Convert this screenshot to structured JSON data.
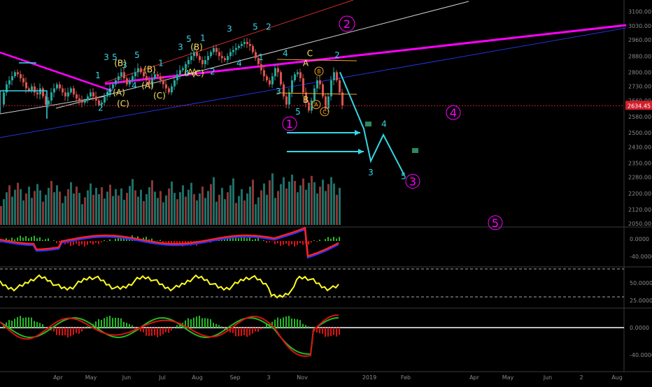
{
  "colors": {
    "background": "#000000",
    "candle_up": "#26a69a",
    "candle_down": "#d9534f",
    "volume_up": "#1f6f66",
    "volume_down": "#8c3636",
    "magenta": "#ff00ff",
    "cyan": "#35d7e6",
    "yellow_label": "#f6e05e",
    "orange": "#f5a623",
    "white_line": "#cfcfcf",
    "red_line": "#d22a2a",
    "blue_line": "#2233dd",
    "axis_text": "#8a8a8a",
    "price_badge": "#d21e2b",
    "macd_blue": "#2233ff",
    "macd_red": "#ff2222",
    "osc_yellow": "#ffff22",
    "osc_green": "#22bb22",
    "osc_red": "#dd1111"
  },
  "chart_data": {
    "type": "line",
    "title": "",
    "x_axis_labels": [
      "Apr",
      "May",
      "Jun",
      "Jul",
      "Aug",
      "Sep",
      "3",
      "Nov",
      "2019",
      "Feb",
      "Apr",
      "May",
      "Jun",
      "2",
      "Aug"
    ],
    "price_axis": {
      "ticks": [
        2050,
        2120,
        2200,
        2280,
        2350,
        2430,
        2500,
        2580,
        2660,
        2730,
        2800,
        2880,
        2960,
        3030,
        3100
      ],
      "tick_labels": [
        "2050.00",
        "2120.00",
        "2200.00",
        "2280.00",
        "2350.00",
        "2430.00",
        "2500.00",
        "2580.00",
        "2660.00",
        "2730.00",
        "2800.00",
        "2880.00",
        "2960.00",
        "3030.00",
        "3100.00"
      ],
      "range": [
        2030,
        3130
      ],
      "current_price": 2634.45,
      "current_price_label": "2634.45"
    },
    "price_series": {
      "name": "",
      "x": [
        0,
        4,
        8,
        12,
        16,
        20,
        24,
        28,
        32,
        36,
        40,
        44,
        48,
        52,
        56,
        60,
        64,
        68,
        72,
        76,
        80,
        84,
        88,
        92,
        96,
        100,
        104,
        108,
        112,
        116,
        120,
        124,
        128,
        132,
        136,
        140,
        144,
        148,
        152,
        156,
        160,
        164,
        168,
        172,
        176,
        180,
        184,
        188,
        192,
        196,
        200,
        204,
        208,
        212,
        216,
        220,
        224,
        228,
        232,
        236,
        240,
        244,
        248,
        252,
        256,
        260,
        264,
        268,
        272,
        276,
        280,
        284,
        288,
        292,
        296,
        300,
        304,
        308,
        312,
        316,
        320,
        324,
        328,
        332,
        336,
        340,
        344,
        348,
        352,
        356,
        360,
        364,
        368,
        372,
        376,
        380,
        384,
        388,
        392,
        396,
        400,
        404,
        408,
        412,
        416,
        420,
        424,
        428,
        432,
        436,
        440,
        444,
        448,
        452,
        456,
        460,
        464,
        468,
        472,
        476,
        480,
        484,
        488
      ],
      "close": [
        2640,
        2700,
        2740,
        2760,
        2780,
        2800,
        2790,
        2770,
        2750,
        2720,
        2710,
        2730,
        2700,
        2690,
        2720,
        2680,
        2640,
        2660,
        2700,
        2720,
        2740,
        2720,
        2700,
        2680,
        2700,
        2720,
        2690,
        2670,
        2660,
        2650,
        2660,
        2680,
        2700,
        2680,
        2660,
        2640,
        2650,
        2680,
        2700,
        2720,
        2740,
        2760,
        2780,
        2800,
        2770,
        2740,
        2760,
        2780,
        2800,
        2820,
        2800,
        2780,
        2760,
        2740,
        2770,
        2790,
        2780,
        2760,
        2740,
        2720,
        2700,
        2730,
        2760,
        2790,
        2810,
        2820,
        2840,
        2860,
        2880,
        2900,
        2880,
        2860,
        2840,
        2860,
        2880,
        2900,
        2920,
        2900,
        2880,
        2870,
        2860,
        2880,
        2900,
        2910,
        2920,
        2930,
        2940,
        2950,
        2940,
        2930,
        2900,
        2870,
        2840,
        2810,
        2780,
        2760,
        2740,
        2780,
        2820,
        2800,
        2740,
        2680,
        2640,
        2700,
        2760,
        2790,
        2800,
        2770,
        2700,
        2650,
        2610,
        2660,
        2720,
        2760,
        2740,
        2680,
        2620,
        2680,
        2760,
        2800,
        2760,
        2700,
        2634
      ]
    },
    "projection": {
      "name": "",
      "x": [
        486,
        520,
        530,
        548,
        578
      ],
      "y": [
        2800,
        2520,
        2360,
        2490,
        2290
      ]
    },
    "wave_labels": [
      {
        "text": "1",
        "x": 140,
        "price": 2770,
        "color": "cyan"
      },
      {
        "text": "2",
        "x": 144,
        "price": 2610,
        "color": "cyan"
      },
      {
        "text": "3",
        "x": 152,
        "price": 2860,
        "color": "cyan"
      },
      {
        "text": "4",
        "x": 156,
        "price": 2685,
        "color": "cyan"
      },
      {
        "text": "5",
        "x": 164,
        "price": 2860,
        "color": "cyan"
      },
      {
        "text": "(B)",
        "x": 172,
        "price": 2830,
        "color": "yellow"
      },
      {
        "text": "(A)",
        "x": 170,
        "price": 2685,
        "color": "yellow"
      },
      {
        "text": "(C)",
        "x": 176,
        "price": 2630,
        "color": "yellow"
      },
      {
        "text": "3",
        "x": 178,
        "price": 2820,
        "color": "cyan"
      },
      {
        "text": "5",
        "x": 196,
        "price": 2870,
        "color": "cyan"
      },
      {
        "text": "(B)",
        "x": 214,
        "price": 2800,
        "color": "yellow"
      },
      {
        "text": "4",
        "x": 192,
        "price": 2720,
        "color": "cyan"
      },
      {
        "text": "(A)",
        "x": 211,
        "price": 2720,
        "color": "yellow"
      },
      {
        "text": "(C)",
        "x": 228,
        "price": 2670,
        "color": "yellow"
      },
      {
        "text": "1",
        "x": 230,
        "price": 2830,
        "color": "cyan"
      },
      {
        "text": "3",
        "x": 258,
        "price": 2910,
        "color": "cyan"
      },
      {
        "text": "5",
        "x": 270,
        "price": 2950,
        "color": "cyan"
      },
      {
        "text": "(B)",
        "x": 281,
        "price": 2910,
        "color": "yellow"
      },
      {
        "text": "1",
        "x": 290,
        "price": 2955,
        "color": "cyan"
      },
      {
        "text": "4",
        "x": 267,
        "price": 2780,
        "color": "cyan"
      },
      {
        "text": "(A)",
        "x": 272,
        "price": 2785,
        "color": "yellow"
      },
      {
        "text": "(C)",
        "x": 283,
        "price": 2780,
        "color": "yellow"
      },
      {
        "text": "2",
        "x": 304,
        "price": 2790,
        "color": "cyan"
      },
      {
        "text": "3",
        "x": 328,
        "price": 3000,
        "color": "cyan"
      },
      {
        "text": "4",
        "x": 342,
        "price": 2830,
        "color": "cyan"
      },
      {
        "text": "5",
        "x": 365,
        "price": 3010,
        "color": "cyan"
      },
      {
        "text": "2",
        "x": 384,
        "price": 3010,
        "color": "cyan"
      },
      {
        "text": "1",
        "x": 373,
        "price": 2860,
        "color": "cyan"
      },
      {
        "text": "4",
        "x": 408,
        "price": 2880,
        "color": "cyan"
      },
      {
        "text": "3",
        "x": 398,
        "price": 2690,
        "color": "cyan"
      },
      {
        "text": "5",
        "x": 426,
        "price": 2590,
        "color": "cyan"
      },
      {
        "text": "A",
        "x": 437,
        "price": 2830,
        "color": "yellow"
      },
      {
        "text": "C",
        "x": 443,
        "price": 2880,
        "color": "yellow"
      },
      {
        "text": "B",
        "x": 437,
        "price": 2650,
        "color": "yellow"
      },
      {
        "text": "2",
        "x": 482,
        "price": 2870,
        "color": "cyan"
      },
      {
        "text": "3",
        "x": 530,
        "price": 2290,
        "color": "cyan"
      },
      {
        "text": "4",
        "x": 549,
        "price": 2530,
        "color": "cyan"
      },
      {
        "text": "5",
        "x": 577,
        "price": 2270,
        "color": "cyan"
      }
    ],
    "circled_labels": [
      {
        "text": "2",
        "x": 496,
        "price": 3040,
        "color": "magenta",
        "r": 11
      },
      {
        "text": "1",
        "x": 414,
        "price": 2545,
        "color": "magenta",
        "r": 10
      },
      {
        "text": "4",
        "x": 648,
        "price": 2600,
        "color": "magenta",
        "r": 10
      },
      {
        "text": "3",
        "x": 590,
        "price": 2260,
        "color": "magenta",
        "r": 10
      },
      {
        "text": "5",
        "x": 708,
        "price": 2055,
        "color": "magenta",
        "r": 10
      },
      {
        "text": "B",
        "x": 456,
        "price": 2805,
        "color": "orange",
        "r": 6
      },
      {
        "text": "A",
        "x": 452,
        "price": 2640,
        "color": "orange",
        "r": 6
      },
      {
        "text": "C",
        "x": 464,
        "price": 2605,
        "color": "orange",
        "r": 6
      }
    ],
    "macd_pane": {
      "tick_labels": [
        "0.0000",
        "-40.0000"
      ]
    },
    "rsi_pane": {
      "tick_labels": [
        "50.0000",
        "25.0000"
      ]
    },
    "osc_pane": {
      "tick_labels": [
        "0.0000",
        "-40.0000"
      ]
    }
  }
}
